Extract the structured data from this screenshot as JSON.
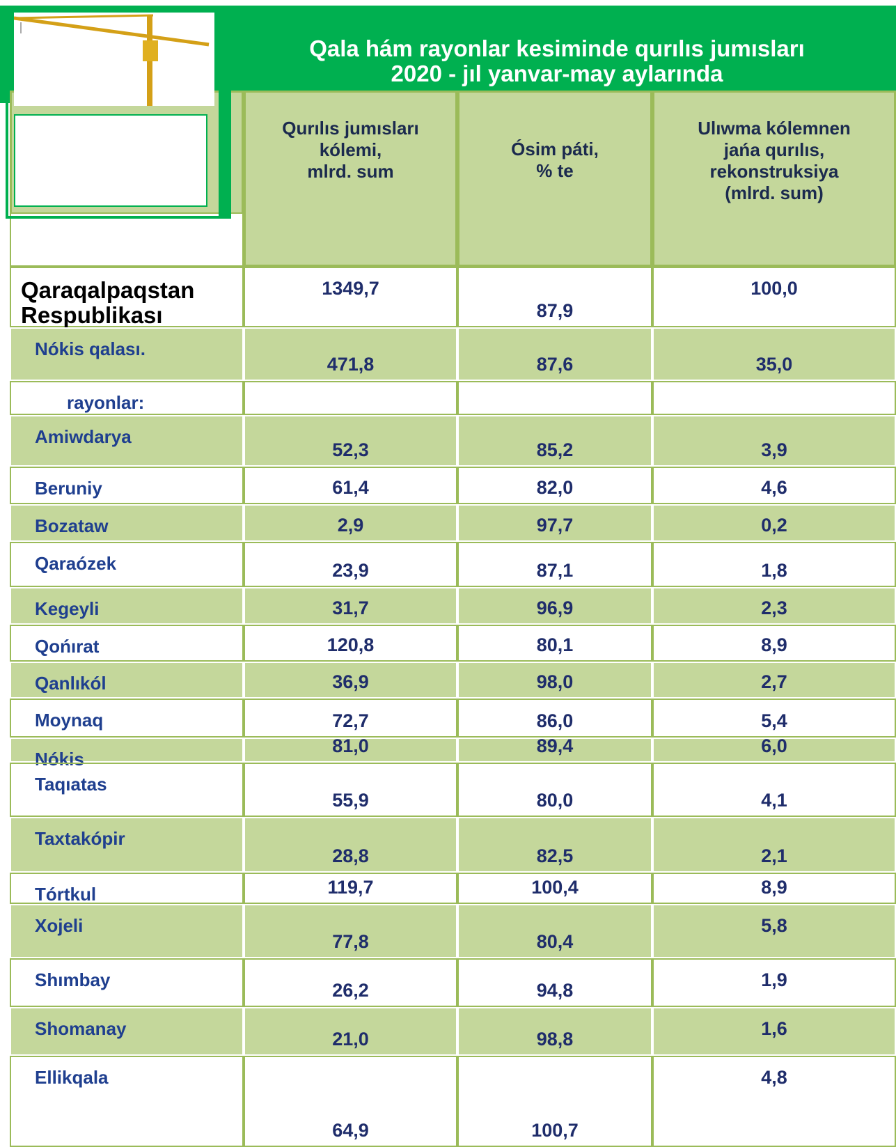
{
  "header": {
    "title_lines": [
      "Qala hám rayonlar  kesiminde qurılıs jumısları",
      "2020 - jıl yanvar-may aylarında"
    ]
  },
  "table": {
    "columns": [
      "Qurılıs jumısları\nkólemi,\nmlrd. sum",
      "Ósim páti,\n% te",
      "Ulıwma kólemnen\njańa qurılıs,\nrekonstruksiya\n(mlrd. sum)"
    ],
    "total": [
      "Qaraqalpaqstan\nRespublikası",
      "1349,7",
      "87,9",
      "100,0"
    ],
    "city": [
      "Nókis qalası.",
      "471,8",
      "87,6",
      "35,0"
    ],
    "section_label": "rayonlar:",
    "rows": [
      [
        "Amiwdarya",
        "52,3",
        "85,2",
        "3,9"
      ],
      [
        "Beruniy",
        "61,4",
        "82,0",
        "4,6"
      ],
      [
        "Bozataw",
        "2,9",
        "97,7",
        "0,2"
      ],
      [
        "Qaraózek",
        "23,9",
        "87,1",
        "1,8"
      ],
      [
        "Kegeyli",
        "31,7",
        "96,9",
        "2,3"
      ],
      [
        "Qońırat",
        "120,8",
        "80,1",
        "8,9"
      ],
      [
        "Qanlıkól",
        "36,9",
        "98,0",
        "2,7"
      ],
      [
        "Moynaq",
        "72,7",
        "86,0",
        "5,4"
      ],
      [
        "Nókis",
        "81,0",
        "89,4",
        "6,0"
      ],
      [
        "Taqıatas",
        "55,9",
        "80,0",
        "4,1"
      ],
      [
        "Taxtakópir",
        "28,8",
        "82,5",
        "2,1"
      ],
      [
        "Tórtkul",
        "119,7",
        "100,4",
        "8,9"
      ],
      [
        "Xojeli",
        "77,8",
        "80,4",
        "5,8"
      ],
      [
        "Shımbay",
        "26,2",
        "94,8",
        "1,9"
      ],
      [
        "Shomanay",
        "21,0",
        "98,8",
        "1,6"
      ],
      [
        "Ellikqala",
        "64,9",
        "100,7",
        "4,8"
      ]
    ]
  }
}
